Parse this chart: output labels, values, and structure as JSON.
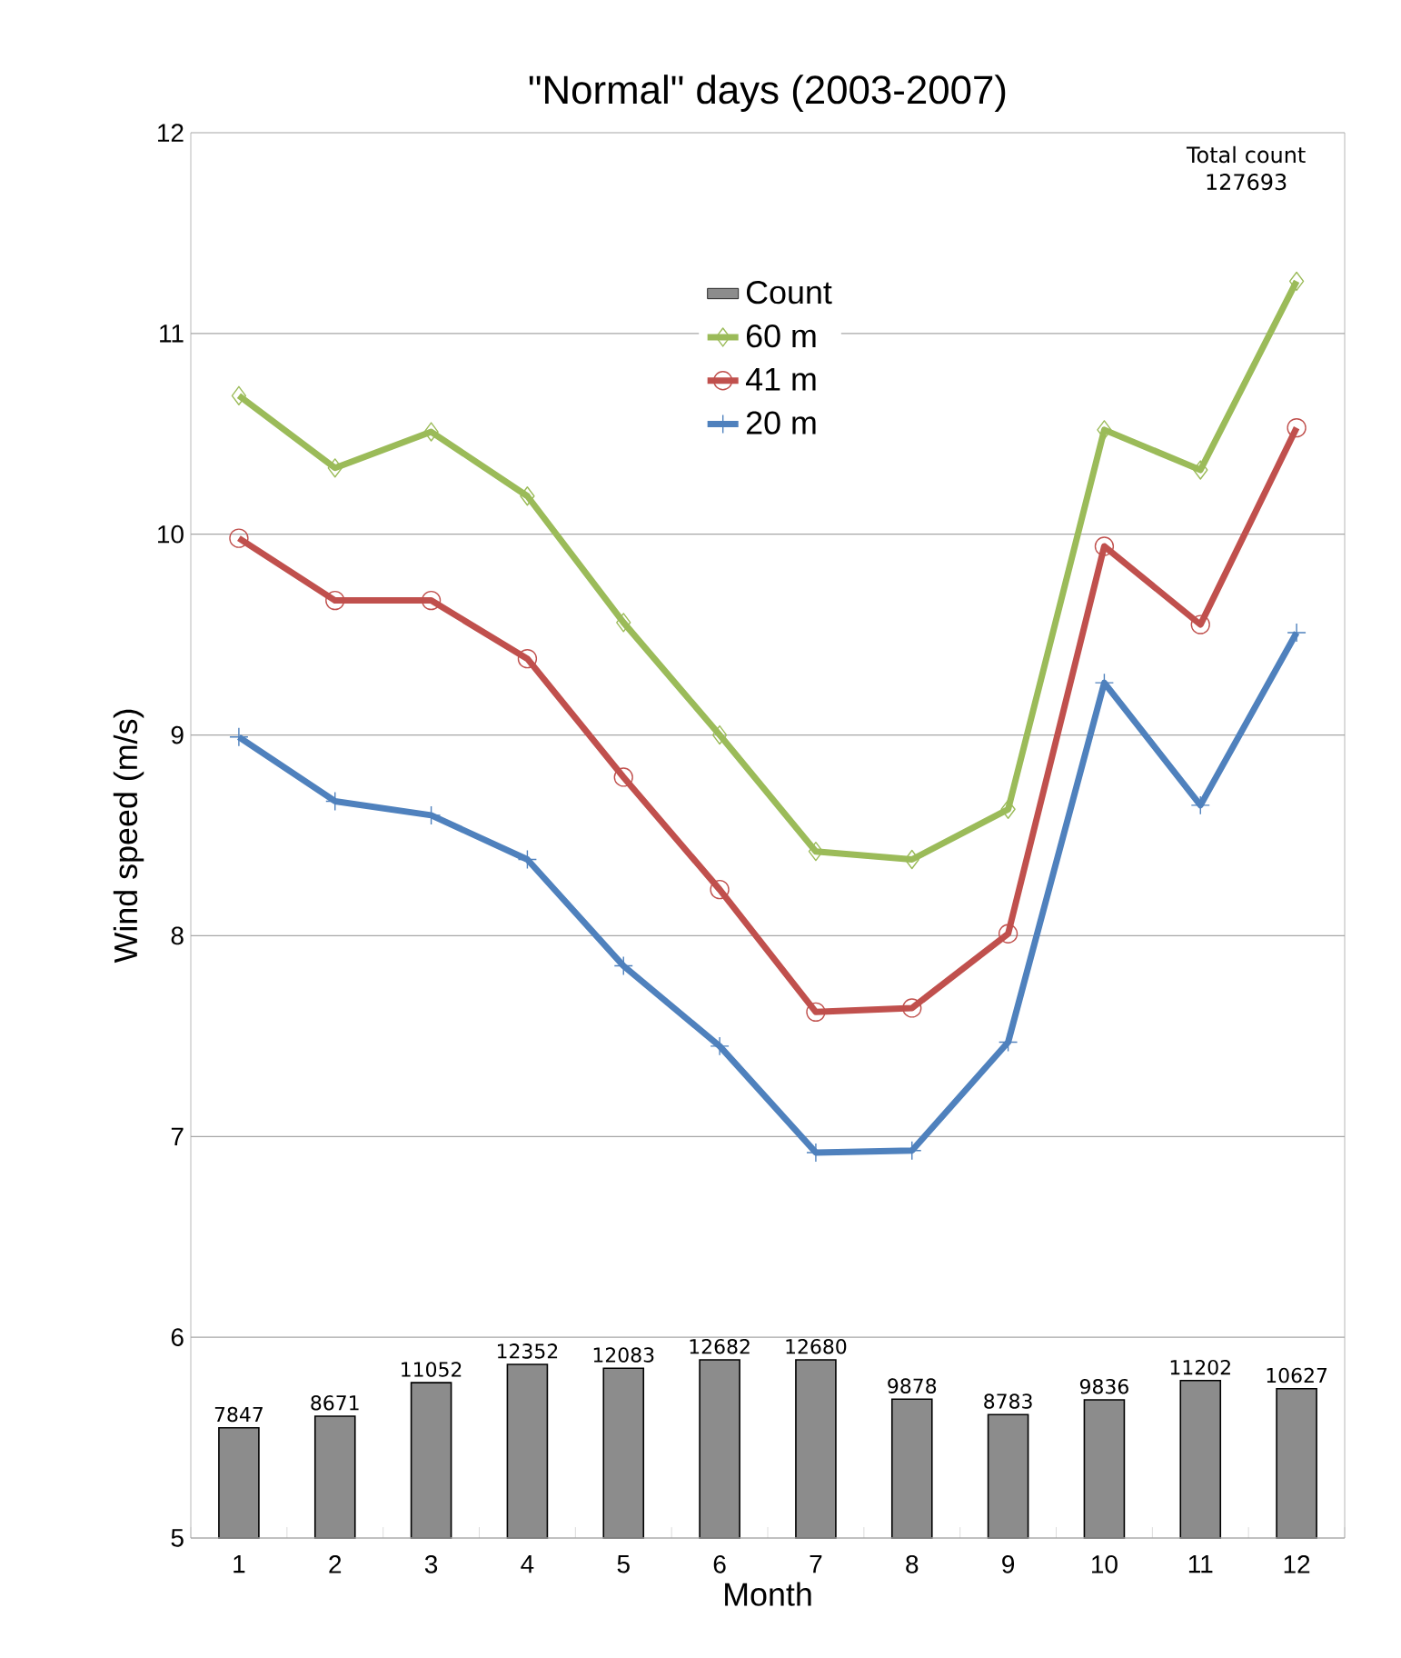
{
  "chart_data": {
    "type": "line",
    "title": "\"Normal\" days (2003-2007)",
    "xlabel": "Month",
    "ylabel": "Wind speed (m/s)",
    "categories": [
      "1",
      "2",
      "3",
      "4",
      "5",
      "6",
      "7",
      "8",
      "9",
      "10",
      "11",
      "12"
    ],
    "series": [
      {
        "name": "Count",
        "type": "bar",
        "axis": "y2",
        "color": "#8c8c8c",
        "data_labels": true,
        "values": [
          7847,
          8671,
          11052,
          12352,
          12083,
          12682,
          12680,
          9878,
          8783,
          9836,
          11202,
          10627
        ]
      },
      {
        "name": "60 m",
        "color": "#9bbb59",
        "marker": "diamond",
        "values": [
          10.69,
          10.33,
          10.51,
          10.19,
          9.56,
          9.0,
          8.42,
          8.38,
          8.63,
          10.52,
          10.32,
          11.26
        ]
      },
      {
        "name": "41 m",
        "color": "#c0504d",
        "marker": "circle",
        "values": [
          9.98,
          9.67,
          9.67,
          9.38,
          8.79,
          8.23,
          7.62,
          7.64,
          8.01,
          9.94,
          9.55,
          10.53
        ]
      },
      {
        "name": "20 m",
        "color": "#4f81bd",
        "marker": "cross",
        "values": [
          8.99,
          8.67,
          8.6,
          8.38,
          7.85,
          7.45,
          6.92,
          6.93,
          7.47,
          9.26,
          8.65,
          9.51
        ]
      }
    ],
    "ylim": [
      5,
      12
    ],
    "yticks": [
      5,
      6,
      7,
      8,
      9,
      10,
      11,
      12
    ],
    "y2lim": [
      0,
      100000
    ],
    "grid": "y",
    "legend": "top",
    "annotations": [
      "Total count 127693"
    ]
  }
}
